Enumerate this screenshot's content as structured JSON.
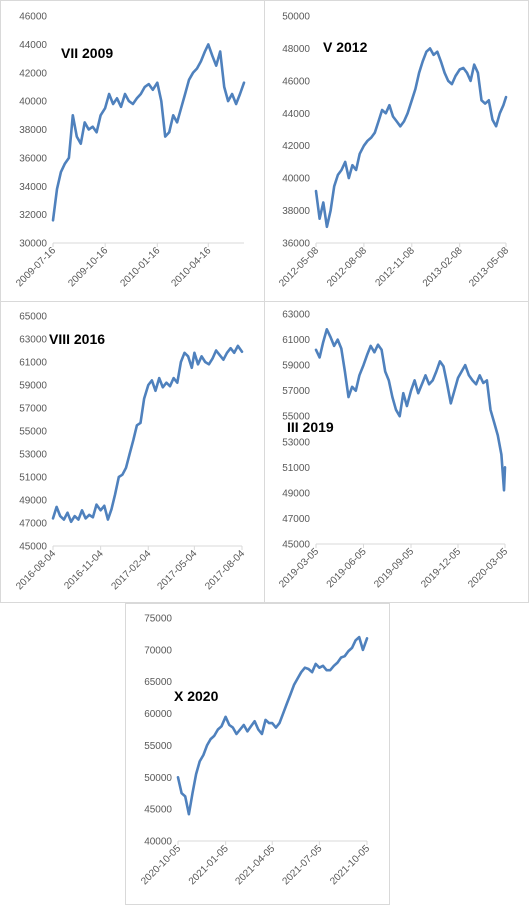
{
  "chart_data": [
    {
      "type": "line",
      "title": "VII 2009",
      "color": "#4f81bd",
      "ylim": [
        30000,
        46000
      ],
      "yticks": [
        "30000",
        "32000",
        "34000",
        "36000",
        "38000",
        "40000",
        "42000",
        "44000",
        "46000"
      ],
      "xticks": [
        "2009-07-16",
        "2009-10-16",
        "2010-01-16",
        "2010-04-16"
      ],
      "series": [
        {
          "x": [
            "2009-07-16",
            "2009-07-23",
            "2009-07-30",
            "2009-08-06",
            "2009-08-13",
            "2009-08-20",
            "2009-08-27",
            "2009-09-03",
            "2009-09-10",
            "2009-09-17",
            "2009-09-24",
            "2009-10-01",
            "2009-10-08",
            "2009-10-16",
            "2009-10-23",
            "2009-10-30",
            "2009-11-06",
            "2009-11-13",
            "2009-11-20",
            "2009-11-27",
            "2009-12-04",
            "2009-12-11",
            "2009-12-18",
            "2009-12-25",
            "2010-01-01",
            "2010-01-08",
            "2010-01-16",
            "2010-01-23",
            "2010-01-30",
            "2010-02-06",
            "2010-02-13",
            "2010-02-20",
            "2010-02-27",
            "2010-03-06",
            "2010-03-13",
            "2010-03-20",
            "2010-03-27",
            "2010-04-03",
            "2010-04-10",
            "2010-04-16",
            "2010-04-23",
            "2010-04-30",
            "2010-05-07",
            "2010-05-14",
            "2010-05-21",
            "2010-05-28",
            "2010-06-04",
            "2010-06-11",
            "2010-06-18"
          ],
          "y": [
            31600,
            33800,
            35000,
            35600,
            36000,
            39000,
            37500,
            37000,
            38500,
            38000,
            38200,
            37800,
            39000,
            39500,
            40500,
            39800,
            40200,
            39600,
            40500,
            40000,
            39800,
            40200,
            40500,
            41000,
            41200,
            40800,
            41300,
            40000,
            37500,
            37800,
            39000,
            38500,
            39500,
            40500,
            41500,
            42000,
            42300,
            42800,
            43500,
            44000,
            43200,
            42500,
            43500,
            41000,
            40000,
            40500,
            39800,
            40500,
            41300
          ]
        }
      ]
    },
    {
      "type": "line",
      "title": "V 2012",
      "color": "#4f81bd",
      "ylim": [
        36000,
        50000
      ],
      "yticks": [
        "36000",
        "38000",
        "40000",
        "42000",
        "44000",
        "46000",
        "48000",
        "50000"
      ],
      "xticks": [
        "2012-05-08",
        "2012-08-08",
        "2012-11-08",
        "2013-02-08",
        "2013-05-08"
      ],
      "series": [
        {
          "x": [
            "2012-05-08",
            "2012-05-15",
            "2012-05-22",
            "2012-05-29",
            "2012-06-05",
            "2012-06-12",
            "2012-06-19",
            "2012-06-26",
            "2012-07-03",
            "2012-07-10",
            "2012-07-17",
            "2012-07-24",
            "2012-07-31",
            "2012-08-08",
            "2012-08-15",
            "2012-08-22",
            "2012-08-29",
            "2012-09-05",
            "2012-09-12",
            "2012-09-19",
            "2012-09-26",
            "2012-10-03",
            "2012-10-10",
            "2012-10-17",
            "2012-10-24",
            "2012-10-31",
            "2012-11-08",
            "2012-11-15",
            "2012-11-22",
            "2012-11-29",
            "2012-12-06",
            "2012-12-13",
            "2012-12-20",
            "2012-12-27",
            "2013-01-03",
            "2013-01-10",
            "2013-01-17",
            "2013-01-24",
            "2013-01-31",
            "2013-02-08",
            "2013-02-15",
            "2013-02-22",
            "2013-03-01",
            "2013-03-08",
            "2013-03-15",
            "2013-03-22",
            "2013-03-29",
            "2013-04-05",
            "2013-04-12",
            "2013-04-19",
            "2013-04-26",
            "2013-05-03",
            "2013-05-08"
          ],
          "y": [
            39200,
            37500,
            38500,
            37000,
            38000,
            39500,
            40200,
            40500,
            41000,
            40000,
            40800,
            40500,
            41500,
            42000,
            42300,
            42500,
            42800,
            43500,
            44200,
            44000,
            44500,
            43800,
            43500,
            43200,
            43500,
            44000,
            44800,
            45500,
            46500,
            47200,
            47800,
            48000,
            47600,
            47800,
            47200,
            46500,
            46000,
            45800,
            46300,
            46700,
            46800,
            46500,
            46000,
            47000,
            46500,
            44800,
            44600,
            44800,
            43600,
            43200,
            44000,
            44500,
            45000
          ]
        }
      ]
    },
    {
      "type": "line",
      "title": "VIII 2016",
      "color": "#4f81bd",
      "ylim": [
        45000,
        65000
      ],
      "yticks": [
        "45000",
        "47000",
        "49000",
        "51000",
        "53000",
        "55000",
        "57000",
        "59000",
        "61000",
        "63000",
        "65000"
      ],
      "xticks": [
        "2016-08-04",
        "2016-11-04",
        "2017-02-04",
        "2017-05-04",
        "2017-08-04"
      ],
      "series": [
        {
          "x": [
            "2016-08-04",
            "2016-08-11",
            "2016-08-18",
            "2016-08-25",
            "2016-09-01",
            "2016-09-08",
            "2016-09-15",
            "2016-09-22",
            "2016-09-29",
            "2016-10-06",
            "2016-10-13",
            "2016-10-20",
            "2016-10-27",
            "2016-11-04",
            "2016-11-11",
            "2016-11-18",
            "2016-11-25",
            "2016-12-02",
            "2016-12-09",
            "2016-12-16",
            "2016-12-23",
            "2016-12-30",
            "2017-01-06",
            "2017-01-13",
            "2017-01-20",
            "2017-01-27",
            "2017-02-04",
            "2017-02-11",
            "2017-02-18",
            "2017-02-25",
            "2017-03-04",
            "2017-03-11",
            "2017-03-18",
            "2017-03-25",
            "2017-04-01",
            "2017-04-08",
            "2017-04-15",
            "2017-04-22",
            "2017-04-29",
            "2017-05-04",
            "2017-05-11",
            "2017-05-18",
            "2017-05-25",
            "2017-06-01",
            "2017-06-08",
            "2017-06-15",
            "2017-06-22",
            "2017-06-29",
            "2017-07-06",
            "2017-07-13",
            "2017-07-20",
            "2017-07-27",
            "2017-08-04"
          ],
          "y": [
            47400,
            48400,
            47600,
            47300,
            47900,
            47100,
            47600,
            47300,
            48100,
            47400,
            47700,
            47500,
            48600,
            48100,
            48500,
            47300,
            48200,
            49500,
            51000,
            51200,
            51800,
            53000,
            54200,
            55500,
            55700,
            57800,
            59000,
            59400,
            58500,
            59600,
            58800,
            59200,
            58900,
            59600,
            59200,
            61000,
            61800,
            61500,
            60500,
            61800,
            60800,
            61500,
            61000,
            60800,
            61300,
            62000,
            61600,
            61200,
            61800,
            62200,
            61800,
            62400,
            61900
          ]
        }
      ]
    },
    {
      "type": "line",
      "title": "III 2019",
      "color": "#4f81bd",
      "ylim": [
        45000,
        63000
      ],
      "yticks": [
        "45000",
        "47000",
        "49000",
        "51000",
        "53000",
        "55000",
        "57000",
        "59000",
        "61000",
        "63000"
      ],
      "xticks": [
        "2019-03-05",
        "2019-06-05",
        "2019-09-05",
        "2019-12-05",
        "2020-03-05"
      ],
      "series": [
        {
          "x": [
            "2019-03-05",
            "2019-03-12",
            "2019-03-19",
            "2019-03-26",
            "2019-04-02",
            "2019-04-09",
            "2019-04-16",
            "2019-04-23",
            "2019-04-30",
            "2019-05-07",
            "2019-05-14",
            "2019-05-21",
            "2019-05-28",
            "2019-06-05",
            "2019-06-12",
            "2019-06-19",
            "2019-06-26",
            "2019-07-03",
            "2019-07-10",
            "2019-07-17",
            "2019-07-24",
            "2019-07-31",
            "2019-08-07",
            "2019-08-14",
            "2019-08-21",
            "2019-08-28",
            "2019-09-05",
            "2019-09-12",
            "2019-09-19",
            "2019-09-26",
            "2019-10-03",
            "2019-10-10",
            "2019-10-17",
            "2019-10-24",
            "2019-10-31",
            "2019-11-07",
            "2019-11-14",
            "2019-11-21",
            "2019-11-28",
            "2019-12-05",
            "2019-12-12",
            "2019-12-19",
            "2019-12-26",
            "2020-01-02",
            "2020-01-09",
            "2020-01-16",
            "2020-01-23",
            "2020-01-30",
            "2020-02-06",
            "2020-02-13",
            "2020-02-20",
            "2020-02-27",
            "2020-03-03",
            "2020-03-05"
          ],
          "y": [
            60200,
            59600,
            60800,
            61800,
            61200,
            60500,
            61000,
            60300,
            58500,
            56500,
            57300,
            57000,
            58200,
            59000,
            59800,
            60500,
            60000,
            60600,
            60200,
            58500,
            57800,
            56500,
            55500,
            55000,
            56800,
            55800,
            57000,
            57800,
            56800,
            57500,
            58200,
            57500,
            57800,
            58500,
            59300,
            58900,
            57500,
            56000,
            57000,
            58000,
            58500,
            59000,
            58200,
            57800,
            57500,
            58200,
            57600,
            57800,
            55500,
            54500,
            53500,
            52000,
            49200,
            51000
          ]
        }
      ]
    },
    {
      "type": "line",
      "title": "X 2020",
      "color": "#4f81bd",
      "ylim": [
        40000,
        75000
      ],
      "yticks": [
        "40000",
        "45000",
        "50000",
        "55000",
        "60000",
        "65000",
        "70000",
        "75000"
      ],
      "xticks": [
        "2020-10-05",
        "2021-01-05",
        "2021-04-05",
        "2021-07-05",
        "2021-10-05"
      ],
      "series": [
        {
          "x": [
            "2020-10-05",
            "2020-10-12",
            "2020-10-19",
            "2020-10-26",
            "2020-11-02",
            "2020-11-09",
            "2020-11-16",
            "2020-11-23",
            "2020-11-30",
            "2020-12-07",
            "2020-12-14",
            "2020-12-21",
            "2020-12-28",
            "2021-01-05",
            "2021-01-12",
            "2021-01-19",
            "2021-01-26",
            "2021-02-02",
            "2021-02-09",
            "2021-02-16",
            "2021-02-23",
            "2021-03-02",
            "2021-03-09",
            "2021-03-16",
            "2021-03-23",
            "2021-03-30",
            "2021-04-05",
            "2021-04-12",
            "2021-04-19",
            "2021-04-26",
            "2021-05-03",
            "2021-05-10",
            "2021-05-17",
            "2021-05-24",
            "2021-05-31",
            "2021-06-07",
            "2021-06-14",
            "2021-06-21",
            "2021-06-28",
            "2021-07-05",
            "2021-07-12",
            "2021-07-19",
            "2021-07-26",
            "2021-08-02",
            "2021-08-09",
            "2021-08-16",
            "2021-08-23",
            "2021-08-30",
            "2021-09-06",
            "2021-09-13",
            "2021-09-20",
            "2021-09-27",
            "2021-10-05"
          ],
          "y": [
            50000,
            47500,
            47000,
            44200,
            47500,
            50500,
            52500,
            53500,
            55000,
            56000,
            56500,
            57500,
            58000,
            59500,
            58200,
            57800,
            56800,
            57500,
            58200,
            57200,
            58000,
            58800,
            57500,
            56800,
            59000,
            58500,
            58500,
            57800,
            58500,
            60000,
            61500,
            63000,
            64500,
            65500,
            66500,
            67200,
            67000,
            66500,
            67800,
            67200,
            67500,
            66800,
            66800,
            67500,
            68000,
            68800,
            69000,
            69800,
            70300,
            71500,
            72000,
            70000,
            71800
          ]
        }
      ]
    }
  ]
}
